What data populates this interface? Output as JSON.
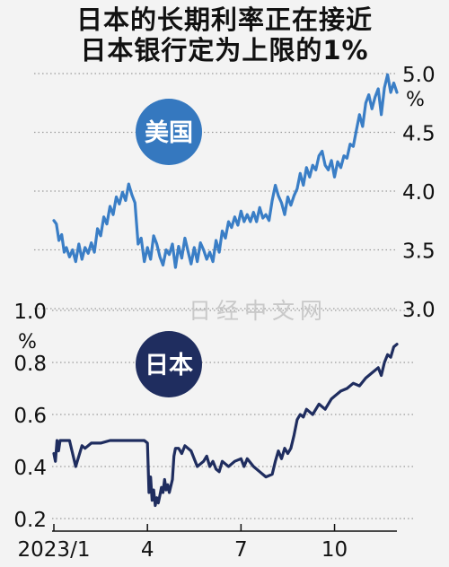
{
  "title": [
    "日本的长期利率正在接近",
    "日本银行定为上限的1%"
  ],
  "watermark": "日经中文网",
  "colors": {
    "us_line": "#3a7ec6",
    "jp_line": "#1f2d5f",
    "us_badge": "#3578bf",
    "jp_badge": "#1f2d5f"
  },
  "chart_data": [
    {
      "type": "line",
      "series": [
        {
          "name": "美国",
          "x": [
            0,
            0.08,
            0.16,
            0.25,
            0.33,
            0.4,
            0.5,
            0.6,
            0.7,
            0.8,
            0.9,
            1.0,
            1.1,
            1.2,
            1.3,
            1.4,
            1.5,
            1.6,
            1.7,
            1.8,
            1.9,
            2.0,
            2.1,
            2.2,
            2.3,
            2.4,
            2.5,
            2.6,
            2.7,
            2.8,
            2.9,
            3.0,
            3.1,
            3.2,
            3.3,
            3.4,
            3.5,
            3.6,
            3.7,
            3.8,
            3.9,
            4.0,
            4.1,
            4.2,
            4.3,
            4.4,
            4.5,
            4.6,
            4.7,
            4.8,
            4.9,
            5.0,
            5.1,
            5.2,
            5.3,
            5.4,
            5.5,
            5.6,
            5.7,
            5.8,
            5.9,
            6.0,
            6.1,
            6.2,
            6.3,
            6.4,
            6.5,
            6.6,
            6.7,
            6.8,
            6.9,
            7.0,
            7.1,
            7.2,
            7.3,
            7.4,
            7.5,
            7.6,
            7.7,
            7.8,
            7.9,
            8.0,
            8.1,
            8.2,
            8.3,
            8.4,
            8.5,
            8.6,
            8.7,
            8.8,
            8.9,
            9.0,
            9.1,
            9.2,
            9.3,
            9.4,
            9.5,
            9.6,
            9.7,
            9.8,
            9.9,
            10.0,
            10.1,
            10.2,
            10.3,
            10.4,
            10.5,
            10.6,
            10.7,
            10.8,
            10.9,
            11.0
          ],
          "values": [
            3.75,
            3.72,
            3.58,
            3.63,
            3.48,
            3.52,
            3.44,
            3.5,
            3.4,
            3.55,
            3.42,
            3.52,
            3.47,
            3.56,
            3.48,
            3.68,
            3.62,
            3.78,
            3.72,
            3.87,
            3.8,
            3.95,
            3.89,
            3.99,
            3.92,
            4.06,
            3.97,
            3.9,
            3.55,
            3.6,
            3.4,
            3.52,
            3.42,
            3.62,
            3.55,
            3.44,
            3.37,
            3.5,
            3.46,
            3.55,
            3.35,
            3.53,
            3.43,
            3.6,
            3.49,
            3.38,
            3.52,
            3.4,
            3.56,
            3.5,
            3.42,
            3.48,
            3.4,
            3.58,
            3.48,
            3.66,
            3.6,
            3.74,
            3.69,
            3.78,
            3.71,
            3.83,
            3.74,
            3.8,
            3.74,
            3.82,
            3.74,
            3.86,
            3.77,
            3.8,
            3.75,
            3.92,
            4.05,
            3.96,
            3.9,
            3.8,
            3.95,
            3.88,
            3.96,
            4.02,
            4.15,
            4.05,
            4.2,
            4.12,
            4.22,
            4.18,
            4.3,
            4.34,
            4.22,
            4.18,
            4.26,
            4.12,
            4.25,
            4.2,
            4.3,
            4.28,
            4.4,
            4.38,
            4.52,
            4.65,
            4.55,
            4.75,
            4.82,
            4.7,
            4.8,
            4.87,
            4.65,
            4.88,
            4.99,
            4.84,
            4.92,
            4.84
          ]
        }
      ],
      "ylim": [
        3.0,
        5.0
      ],
      "yticks": [
        "3.0",
        "3.5",
        "4.0",
        "4.5",
        "5.0"
      ],
      "unit": "%",
      "badge": "美国",
      "grid": true
    },
    {
      "type": "line",
      "series": [
        {
          "name": "日本",
          "x": [
            0,
            0.05,
            0.1,
            0.15,
            0.2,
            0.3,
            0.5,
            0.7,
            0.9,
            1.0,
            1.2,
            1.5,
            1.8,
            2.0,
            2.3,
            2.6,
            2.9,
            3.0,
            3.05,
            3.1,
            3.15,
            3.2,
            3.25,
            3.3,
            3.35,
            3.4,
            3.45,
            3.5,
            3.55,
            3.6,
            3.65,
            3.7,
            3.8,
            3.85,
            3.9,
            4.0,
            4.1,
            4.2,
            4.4,
            4.6,
            4.8,
            4.9,
            5.0,
            5.1,
            5.2,
            5.3,
            5.4,
            5.6,
            5.8,
            6.0,
            6.1,
            6.2,
            6.4,
            6.6,
            6.8,
            7.0,
            7.1,
            7.2,
            7.3,
            7.4,
            7.5,
            7.6,
            7.7,
            7.8,
            7.9,
            8.0,
            8.1,
            8.3,
            8.5,
            8.7,
            8.9,
            9.0,
            9.2,
            9.4,
            9.6,
            9.8,
            10.0,
            10.2,
            10.4,
            10.5,
            10.6,
            10.7,
            10.8,
            10.9,
            11.0
          ],
          "values": [
            0.45,
            0.42,
            0.5,
            0.46,
            0.5,
            0.5,
            0.5,
            0.4,
            0.48,
            0.47,
            0.49,
            0.49,
            0.5,
            0.5,
            0.5,
            0.5,
            0.5,
            0.49,
            0.3,
            0.36,
            0.27,
            0.31,
            0.25,
            0.28,
            0.26,
            0.29,
            0.32,
            0.3,
            0.35,
            0.31,
            0.33,
            0.3,
            0.35,
            0.44,
            0.47,
            0.47,
            0.45,
            0.48,
            0.46,
            0.4,
            0.42,
            0.44,
            0.4,
            0.42,
            0.39,
            0.38,
            0.42,
            0.4,
            0.42,
            0.43,
            0.4,
            0.43,
            0.4,
            0.38,
            0.36,
            0.37,
            0.42,
            0.46,
            0.43,
            0.47,
            0.45,
            0.47,
            0.52,
            0.58,
            0.6,
            0.59,
            0.62,
            0.6,
            0.64,
            0.62,
            0.66,
            0.67,
            0.69,
            0.7,
            0.72,
            0.71,
            0.74,
            0.76,
            0.78,
            0.75,
            0.8,
            0.83,
            0.82,
            0.86,
            0.87
          ]
        }
      ],
      "ylim": [
        0.2,
        1.0
      ],
      "yticks": [
        "0.2",
        "0.4",
        "0.6",
        "0.8",
        "1.0"
      ],
      "unit": "%",
      "badge": "日本",
      "grid": true
    }
  ],
  "x_axis": {
    "range": [
      0,
      11
    ],
    "ticks": [
      {
        "value": 0,
        "label": "2023/1"
      },
      {
        "value": 3,
        "label": "4"
      },
      {
        "value": 6,
        "label": "7"
      },
      {
        "value": 9,
        "label": "10"
      }
    ]
  }
}
